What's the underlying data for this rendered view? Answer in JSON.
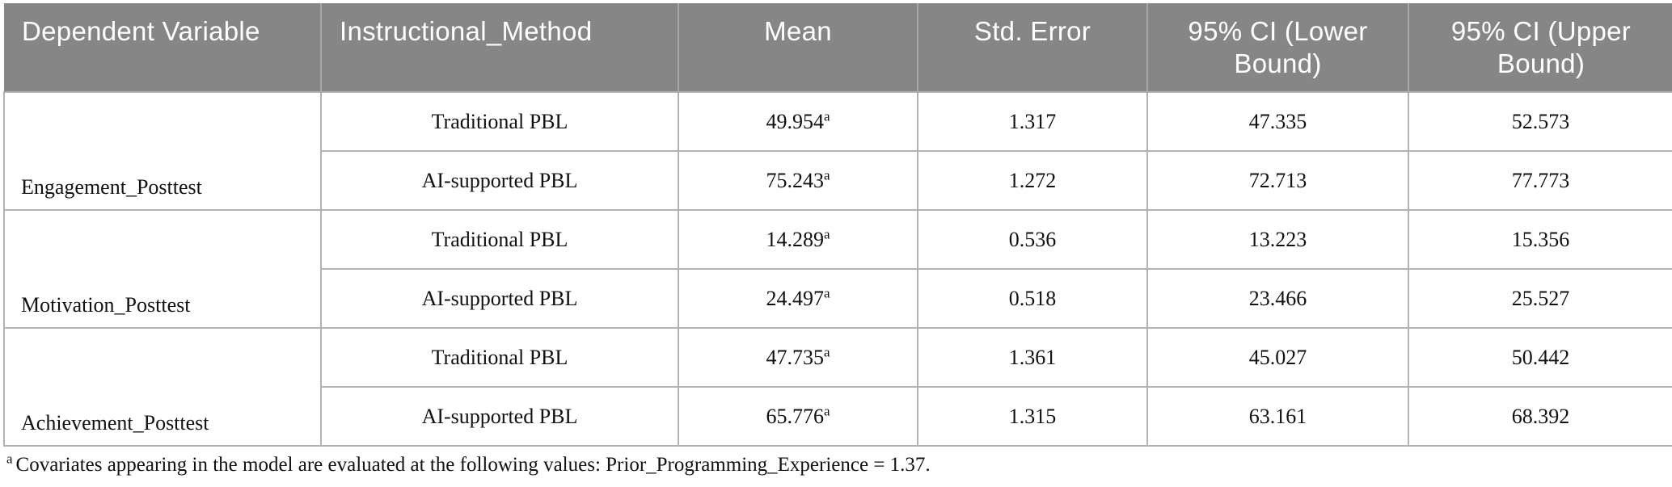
{
  "colors": {
    "header_bg": "#868686",
    "header_text": "#ffffff",
    "border": "#b2b2b2",
    "body_text": "#111111"
  },
  "table": {
    "columns": [
      "Dependent Variable",
      "Instructional_Method",
      "Mean",
      "Std. Error",
      "95% CI (Lower Bound)",
      "95% CI (Upper Bound)"
    ],
    "groups": [
      {
        "label": "Engagement_Posttest",
        "rows": [
          {
            "method": "Traditional PBL",
            "mean": "49.954",
            "mean_sup": "a",
            "std_error": "1.317",
            "ci_lower": "47.335",
            "ci_upper": "52.573"
          },
          {
            "method": "AI-supported PBL",
            "mean": "75.243",
            "mean_sup": "a",
            "std_error": "1.272",
            "ci_lower": "72.713",
            "ci_upper": "77.773"
          }
        ]
      },
      {
        "label": "Motivation_Posttest",
        "rows": [
          {
            "method": "Traditional PBL",
            "mean": "14.289",
            "mean_sup": "a",
            "std_error": "0.536",
            "ci_lower": "13.223",
            "ci_upper": "15.356"
          },
          {
            "method": "AI-supported PBL",
            "mean": "24.497",
            "mean_sup": "a",
            "std_error": "0.518",
            "ci_lower": "23.466",
            "ci_upper": "25.527"
          }
        ]
      },
      {
        "label": "Achievement_Posttest",
        "rows": [
          {
            "method": "Traditional PBL",
            "mean": "47.735",
            "mean_sup": "a",
            "std_error": "1.361",
            "ci_lower": "45.027",
            "ci_upper": "50.442"
          },
          {
            "method": "AI-supported PBL",
            "mean": "65.776",
            "mean_sup": "a",
            "std_error": "1.315",
            "ci_lower": "63.161",
            "ci_upper": "68.392"
          }
        ]
      }
    ],
    "footnote": {
      "marker": "a",
      "text": "Covariates appearing in the model are evaluated at the following values: Prior_Programming_Experience = 1.37."
    }
  }
}
